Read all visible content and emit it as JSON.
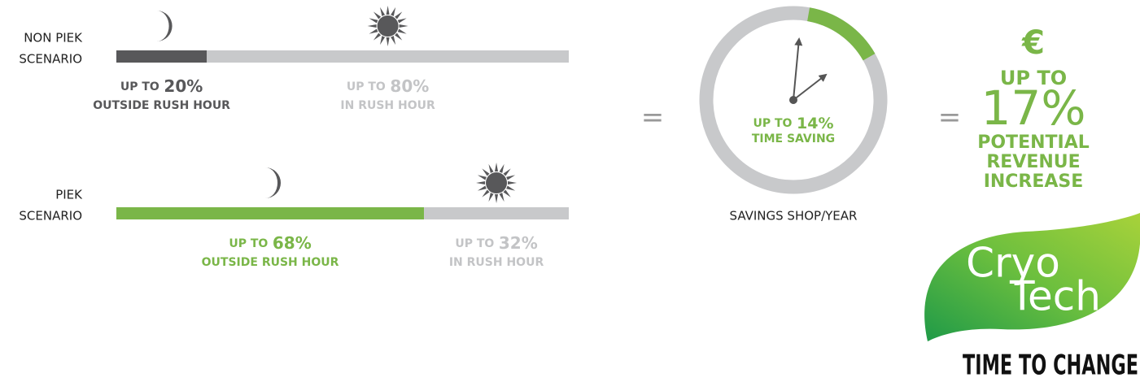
{
  "scenarios": [
    {
      "label": [
        "NON PIEK",
        "SCENARIO"
      ],
      "segments": [
        {
          "prefix": "UP TO",
          "value": 20,
          "value_label": "20%",
          "caption": "OUTSIDE RUSH HOUR",
          "color": "#58585a",
          "text_color": "#58585a"
        },
        {
          "prefix": "UP TO",
          "value": 80,
          "value_label": "80%",
          "caption": "IN RUSH HOUR",
          "color": "#c8c9cb",
          "text_color": "#c3c4c6"
        }
      ]
    },
    {
      "label": [
        "PIEK",
        "SCENARIO"
      ],
      "segments": [
        {
          "prefix": "UP TO",
          "value": 68,
          "value_label": "68%",
          "caption": "OUTSIDE RUSH HOUR",
          "color": "#7ab648",
          "text_color": "#7ab648"
        },
        {
          "prefix": "UP TO",
          "value": 32,
          "value_label": "32%",
          "caption": "IN RUSH HOUR",
          "color": "#c8c9cb",
          "text_color": "#c3c4c6"
        }
      ]
    }
  ],
  "equals": "=",
  "clock": {
    "prefix": "UP TO",
    "value": 14,
    "value_label": "14%",
    "caption": "TIME SAVING",
    "footer": "SAVINGS SHOP/YEAR",
    "color": "#7ab648",
    "track_color": "#c8c9cb"
  },
  "revenue": {
    "currency": "€",
    "prefix": "UP TO",
    "value": "17%",
    "lines": [
      "POTENTIAL",
      "REVENUE",
      "INCREASE"
    ]
  },
  "logo": {
    "top": "Cryo",
    "bottom": "Tech",
    "slogan": "TIME TO CHANGE"
  }
}
